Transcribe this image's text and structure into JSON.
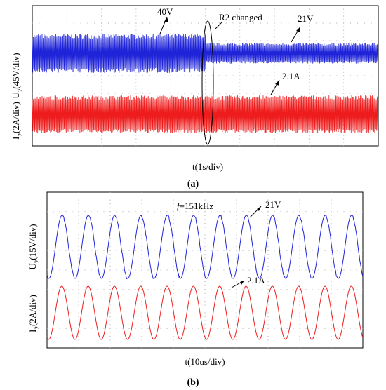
{
  "colors": {
    "voltage": "#1f24d8",
    "current": "#ee1c1c",
    "grid": "#8c8c8c",
    "frame": "#000000"
  },
  "panel_a": {
    "caption": "(a)",
    "xlabel": "t(1s/div)",
    "ylabel_u": "U2(45V/div)",
    "ylabel_i": "I2(2A/div)",
    "annotations": {
      "v_before": "40V",
      "event": "R2 changed",
      "v_after": "21V",
      "i_label": "2.1A"
    }
  },
  "panel_b": {
    "caption": "(b)",
    "xlabel": "t(10us/div)",
    "ylabel_u": "U2(15V/div)",
    "ylabel_i": "I2(2A/div)",
    "annotations": {
      "freq": "f=151kHz",
      "v_label": "21V",
      "i_label": "2.1A"
    }
  },
  "chart_data": [
    {
      "type": "line",
      "panel": "a",
      "xlabel": "t(1s/div)",
      "x_divisions": 10,
      "event_time_div": 5.0,
      "event_label": "R2 changed",
      "series": [
        {
          "name": "U2",
          "ylabel": "U2(45V/div)",
          "unit": "V",
          "value_before": 40,
          "value_after": 21
        },
        {
          "name": "I2",
          "ylabel": "I2(2A/div)",
          "unit": "A",
          "value": 2.1
        }
      ]
    },
    {
      "type": "line",
      "panel": "b",
      "xlabel": "t(10us/div)",
      "frequency_label": "f=151kHz",
      "frequency_khz": 151,
      "x_divisions": 10,
      "visible_cycles": 12,
      "series": [
        {
          "name": "U2",
          "ylabel": "U2(15V/div)",
          "unit": "V",
          "amplitude": 21
        },
        {
          "name": "I2",
          "ylabel": "I2(2A/div)",
          "unit": "A",
          "amplitude": 2.1
        }
      ]
    }
  ]
}
